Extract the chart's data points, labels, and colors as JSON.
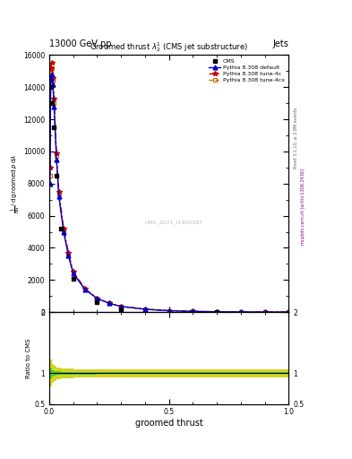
{
  "title": "13000 GeV pp",
  "title_right": "Jets",
  "plot_title": "Groomed thrust $\\lambda_2^1$ (CMS jet substructure)",
  "xlabel": "groomed thrust",
  "watermark": "CMS_2021_I1920187",
  "right_label": "mcplots.cern.ch [arXiv:1306.3436]",
  "rivet_label": "Rivet 3.1.10, ≥ 2.8M events",
  "cms_x": [
    0.005,
    0.01,
    0.02,
    0.03,
    0.05,
    0.1,
    0.2,
    0.3,
    0.7
  ],
  "cms_y": [
    14000,
    13000,
    11500,
    8500,
    5200,
    2100,
    650,
    200,
    4
  ],
  "pythia_default_x": [
    0.003,
    0.006,
    0.01,
    0.015,
    0.02,
    0.03,
    0.04,
    0.06,
    0.08,
    0.1,
    0.15,
    0.2,
    0.25,
    0.3,
    0.4,
    0.5,
    0.6,
    0.7,
    0.8,
    0.9,
    1.0
  ],
  "pythia_default_y": [
    8000,
    14500,
    14800,
    14200,
    12800,
    9500,
    7200,
    5000,
    3500,
    2400,
    1400,
    850,
    550,
    350,
    180,
    90,
    45,
    22,
    10,
    4,
    1.5
  ],
  "pythia_4c_x": [
    0.003,
    0.006,
    0.01,
    0.015,
    0.02,
    0.03,
    0.04,
    0.06,
    0.08,
    0.1,
    0.15,
    0.2,
    0.25,
    0.3,
    0.4,
    0.5,
    0.6,
    0.7,
    0.8,
    0.9,
    1.0
  ],
  "pythia_4c_y": [
    9000,
    15200,
    15500,
    14600,
    13300,
    9900,
    7500,
    5200,
    3700,
    2500,
    1450,
    870,
    560,
    360,
    185,
    92,
    46,
    23,
    10.5,
    4.2,
    1.6
  ],
  "pythia_4cx_x": [
    0.003,
    0.006,
    0.01,
    0.015,
    0.02,
    0.03,
    0.04,
    0.06,
    0.08,
    0.1,
    0.15,
    0.2,
    0.25,
    0.3,
    0.4,
    0.5,
    0.6,
    0.7,
    0.8,
    0.9,
    1.0
  ],
  "pythia_4cx_y": [
    8500,
    14900,
    15200,
    14400,
    13000,
    9700,
    7350,
    5100,
    3600,
    2450,
    1425,
    860,
    555,
    355,
    182,
    91,
    45.5,
    22.5,
    10.2,
    4.1,
    1.55
  ],
  "ratio_x_edges": [
    0.0,
    0.005,
    0.01,
    0.02,
    0.03,
    0.05,
    0.1,
    0.2,
    0.3,
    0.5,
    0.7,
    1.0
  ],
  "ratio_x_centers": [
    0.0025,
    0.0075,
    0.015,
    0.025,
    0.04,
    0.075,
    0.15,
    0.25,
    0.4,
    0.6,
    0.85
  ],
  "green_band_y1": [
    0.88,
    0.92,
    0.95,
    0.96,
    0.97,
    0.975,
    0.98,
    0.985,
    0.985,
    0.985,
    0.985
  ],
  "green_band_y2": [
    1.12,
    1.08,
    1.05,
    1.04,
    1.03,
    1.025,
    1.02,
    1.015,
    1.015,
    1.015,
    1.015
  ],
  "yellow_band_y1": [
    0.72,
    0.78,
    0.84,
    0.88,
    0.9,
    0.92,
    0.93,
    0.935,
    0.93,
    0.93,
    0.93
  ],
  "yellow_band_y2": [
    1.28,
    1.22,
    1.16,
    1.12,
    1.1,
    1.08,
    1.07,
    1.065,
    1.07,
    1.07,
    1.07
  ],
  "colors": {
    "cms": "#000000",
    "pythia_default": "#0000cc",
    "pythia_4c": "#cc0000",
    "pythia_4cx": "#cc6600",
    "green_band": "#33cc33",
    "yellow_band": "#cccc00"
  },
  "ylim_main": [
    0,
    16000
  ],
  "xlim": [
    0.0,
    1.0
  ],
  "ratio_ylim": [
    0.5,
    2.0
  ]
}
